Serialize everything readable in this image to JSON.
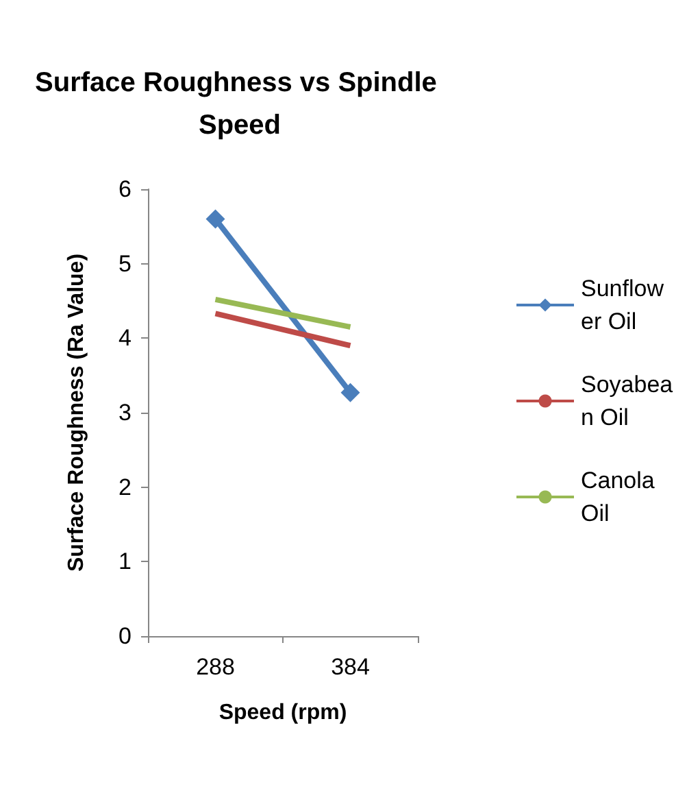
{
  "chart_data": {
    "type": "line",
    "title": "Surface Roughness vs Spindle Speed",
    "xlabel": "Speed (rpm)",
    "ylabel": "Surface Roughness (Ra Value)",
    "categories": [
      "288",
      "384"
    ],
    "series": [
      {
        "name": "Sunflower Oil",
        "color": "#4a7ebb",
        "values": [
          5.6,
          3.27
        ],
        "marker": "diamond"
      },
      {
        "name": "Soyabean Oil",
        "color": "#be4b48",
        "values": [
          4.33,
          3.9
        ],
        "marker": "none"
      },
      {
        "name": "Canola Oil",
        "color": "#98b954",
        "values": [
          4.52,
          4.15
        ],
        "marker": "none"
      }
    ],
    "ylim": [
      0,
      6
    ],
    "yticks": [
      0,
      1,
      2,
      3,
      4,
      5,
      6
    ],
    "grid": false,
    "legend": "right"
  }
}
